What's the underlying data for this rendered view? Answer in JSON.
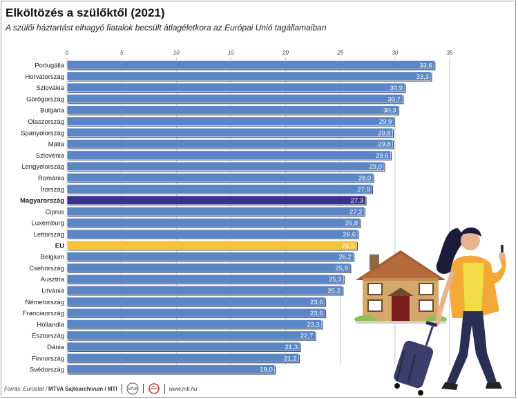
{
  "title": "Elköltözés a szülőktől (2021)",
  "subtitle": "A szülői háztartást elhagyó fiatalok becsült átlagéletkora az Európai Unió tagállamaiban",
  "footer": {
    "source_prefix": "Forrás: Eurostat / ",
    "source_bold": "MTVA Sajtóarchívum / MTI",
    "url": "www.mti.hu",
    "logo1_text": "MTVA",
    "logo2_text": "MTI"
  },
  "colors": {
    "bar": "#5b86c5",
    "bar_highlight": "#3a3190",
    "bar_eu": "#f3c33c",
    "grid": "#b9b9b9"
  },
  "chart_data": {
    "type": "bar",
    "orientation": "horizontal",
    "xlim": [
      0,
      35
    ],
    "xticks": [
      0,
      5,
      10,
      15,
      20,
      25,
      30,
      35
    ],
    "xtick_labels": [
      "0",
      "5",
      "10",
      "15",
      "20",
      "25",
      "30",
      "35"
    ],
    "grid": true,
    "categories": [
      "Portugália",
      "Horvátország",
      "Szlovákia",
      "Görögország",
      "Bulgária",
      "Olaszország",
      "Spanyolország",
      "Málta",
      "Szlovénia",
      "Lengyelország",
      "Románia",
      "Írország",
      "Magyarország",
      "Ciprus",
      "Luxemburg",
      "Lettország",
      "EU",
      "Belgium",
      "Csehország",
      "Ausztria",
      "Litvánia",
      "Németország",
      "Franciaország",
      "Hollandia",
      "Észtország",
      "Dánia",
      "Finnország",
      "Svédország"
    ],
    "values": [
      33.6,
      33.3,
      30.9,
      30.7,
      30.3,
      29.9,
      29.8,
      29.8,
      29.6,
      29.0,
      28.0,
      27.9,
      27.3,
      27.2,
      26.8,
      26.6,
      26.5,
      26.2,
      25.9,
      25.3,
      25.2,
      23.6,
      23.6,
      23.3,
      22.7,
      21.3,
      21.2,
      19.0
    ],
    "value_labels": [
      "33,6",
      "33,3",
      "30,9",
      "30,7",
      "30,3",
      "29,9",
      "29,8",
      "29,8",
      "29,6",
      "29,0",
      "28,0",
      "27,9",
      "27,3",
      "27,2",
      "26,8",
      "26,6",
      "26,5",
      "26,2",
      "25,9",
      "25,3",
      "25,2",
      "23,6",
      "23,6",
      "23,3",
      "22,7",
      "21,3",
      "21,2",
      "19,0"
    ],
    "highlight": [
      "Magyarország"
    ],
    "eu": [
      "EU"
    ]
  }
}
